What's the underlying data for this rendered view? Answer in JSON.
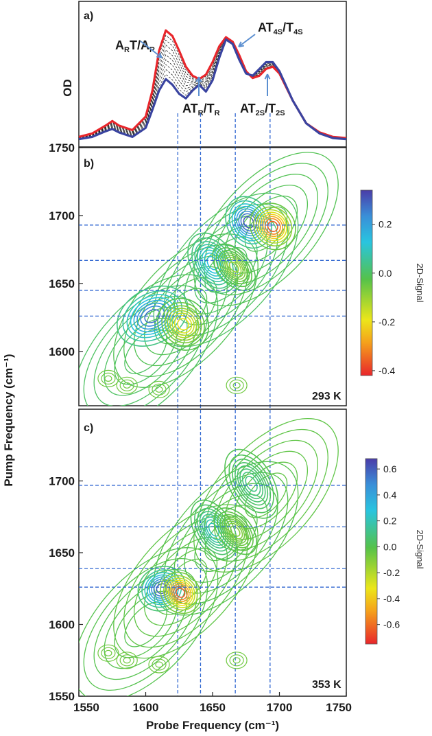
{
  "chart_data": [
    {
      "panel": "a)",
      "type": "line",
      "ylabel": "OD",
      "xlim": [
        1550,
        1750
      ],
      "annotations": [
        {
          "text": "A",
          "sub": "R",
          "text2": "T/A",
          "sub2": "R",
          "x": 1612
        },
        {
          "text": "AT",
          "sub": "4S",
          "text2": "/T",
          "sub2": "4S",
          "x": 1668
        },
        {
          "text": "AT",
          "sub": "R",
          "text2": "/T",
          "sub2": "R",
          "x": 1641
        },
        {
          "text": "AT",
          "sub": "2S",
          "text2": "/T",
          "sub2": "2S",
          "x": 1693
        }
      ],
      "series": [
        {
          "color": "#e8262b",
          "x": [
            1550,
            1560,
            1570,
            1575,
            1580,
            1590,
            1600,
            1605,
            1610,
            1615,
            1620,
            1625,
            1630,
            1635,
            1640,
            1645,
            1650,
            1655,
            1660,
            1665,
            1670,
            1675,
            1680,
            1685,
            1690,
            1695,
            1700,
            1710,
            1720,
            1730,
            1740,
            1750
          ],
          "y": [
            0.04,
            0.07,
            0.14,
            0.18,
            0.14,
            0.1,
            0.22,
            0.45,
            0.8,
            0.98,
            0.93,
            0.8,
            0.66,
            0.58,
            0.55,
            0.59,
            0.7,
            0.84,
            0.92,
            0.88,
            0.76,
            0.62,
            0.56,
            0.58,
            0.64,
            0.66,
            0.6,
            0.36,
            0.16,
            0.08,
            0.04,
            0.03
          ]
        },
        {
          "color": "#3a44a0",
          "x": [
            1550,
            1560,
            1570,
            1575,
            1580,
            1590,
            1600,
            1605,
            1610,
            1615,
            1620,
            1625,
            1630,
            1635,
            1640,
            1645,
            1650,
            1655,
            1660,
            1665,
            1670,
            1675,
            1680,
            1685,
            1690,
            1695,
            1700,
            1710,
            1720,
            1730,
            1740,
            1750
          ],
          "y": [
            0.02,
            0.04,
            0.09,
            0.11,
            0.08,
            0.04,
            0.12,
            0.28,
            0.45,
            0.55,
            0.5,
            0.42,
            0.38,
            0.45,
            0.5,
            0.44,
            0.54,
            0.74,
            0.9,
            0.86,
            0.72,
            0.6,
            0.58,
            0.64,
            0.7,
            0.7,
            0.62,
            0.36,
            0.16,
            0.07,
            0.03,
            0.02
          ]
        }
      ],
      "vlines": [
        1624,
        1641,
        1667,
        1693
      ]
    },
    {
      "panel": "b)",
      "type": "contour",
      "temperature": "293 K",
      "ylabel": "Pump Frequency (cm⁻¹)",
      "xlim": [
        1550,
        1750
      ],
      "ylim": [
        1560,
        1750
      ],
      "yticks": [
        1750,
        1700,
        1650,
        1600
      ],
      "colorbar": {
        "title": "2D-Signal",
        "ticks": [
          0.2,
          0.0,
          -0.2,
          -0.4
        ],
        "range": [
          -0.42,
          0.34
        ]
      },
      "hlines": [
        1693,
        1667,
        1645,
        1626
      ],
      "vlines": [
        1624,
        1641,
        1667,
        1693
      ],
      "peaks": [
        {
          "x": 1605,
          "y": 1626,
          "sx": 14,
          "sy": 10,
          "a": 0.3
        },
        {
          "x": 1628,
          "y": 1620,
          "sx": 9,
          "sy": 10,
          "a": -0.22
        },
        {
          "x": 1650,
          "y": 1665,
          "sx": 8,
          "sy": 12,
          "a": 0.16
        },
        {
          "x": 1666,
          "y": 1662,
          "sx": 6,
          "sy": 10,
          "a": -0.12
        },
        {
          "x": 1677,
          "y": 1695,
          "sx": 8,
          "sy": 10,
          "a": 0.34
        },
        {
          "x": 1695,
          "y": 1692,
          "sx": 8,
          "sy": 9,
          "a": -0.4
        }
      ]
    },
    {
      "panel": "c)",
      "type": "contour",
      "temperature": "353 K",
      "ylabel": "Pump Frequency (cm⁻¹)",
      "xlabel": "Probe Frequency (cm⁻¹)",
      "xlim": [
        1550,
        1750
      ],
      "ylim": [
        1550,
        1750
      ],
      "xticks": [
        1550,
        1600,
        1650,
        1700,
        1750
      ],
      "yticks": [
        1700,
        1650,
        1600,
        1550
      ],
      "colorbar": {
        "title": "2D-Signal",
        "ticks": [
          0.6,
          0.4,
          0.2,
          0.0,
          -0.2,
          -0.4,
          -0.6
        ],
        "range": [
          -0.75,
          0.68
        ]
      },
      "hlines": [
        1697,
        1668,
        1639,
        1626
      ],
      "vlines": [
        1624,
        1641,
        1667,
        1693
      ],
      "peaks": [
        {
          "x": 1612,
          "y": 1625,
          "sx": 9,
          "sy": 8,
          "a": 0.66
        },
        {
          "x": 1626,
          "y": 1622,
          "sx": 7,
          "sy": 8,
          "a": -0.72
        },
        {
          "x": 1651,
          "y": 1666,
          "sx": 7,
          "sy": 12,
          "a": 0.24
        },
        {
          "x": 1667,
          "y": 1665,
          "sx": 6,
          "sy": 10,
          "a": -0.12
        },
        {
          "x": 1679,
          "y": 1698,
          "sx": 8,
          "sy": 14,
          "a": 0.12
        }
      ]
    }
  ],
  "colors": {
    "red_trace": "#e8262b",
    "blue_trace": "#3a44a0",
    "guide_lines": "#2f66d0",
    "colormap": [
      "#e8262b",
      "#f5a21b",
      "#ece61a",
      "#55c24a",
      "#29c4df",
      "#3a8fd8",
      "#4a3ca8"
    ]
  }
}
